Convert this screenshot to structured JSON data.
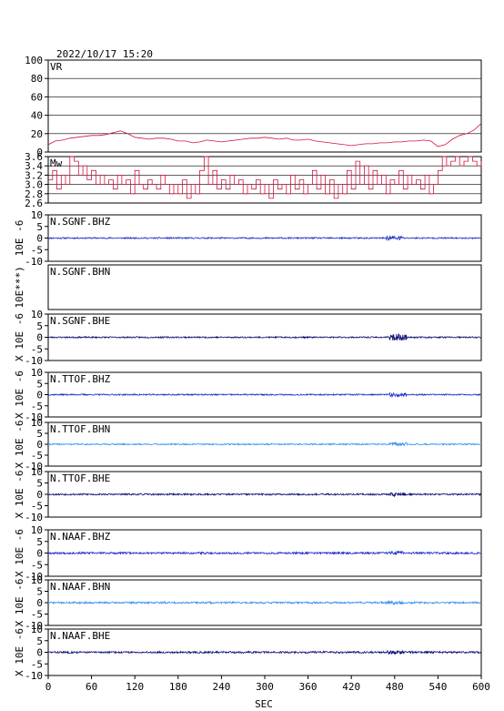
{
  "header": {
    "timestamp": "2022/10/17  15:20"
  },
  "chart_data": {
    "type": "line",
    "xlabel": "SEC",
    "xlim": [
      0,
      600
    ],
    "x_ticks": [
      0,
      60,
      120,
      180,
      240,
      300,
      360,
      420,
      480,
      540,
      600
    ],
    "panels": [
      {
        "label": "VR",
        "ylim": [
          0,
          100
        ],
        "y_ticks": [
          0,
          20,
          40,
          60,
          80,
          100
        ],
        "ylabel": "",
        "grid": true,
        "color": "#d4143c",
        "series": {
          "x": [
            0,
            10,
            20,
            30,
            40,
            50,
            60,
            70,
            80,
            90,
            100,
            110,
            120,
            130,
            140,
            150,
            160,
            170,
            180,
            190,
            200,
            210,
            220,
            230,
            240,
            250,
            260,
            270,
            280,
            290,
            300,
            310,
            320,
            330,
            340,
            350,
            360,
            370,
            380,
            390,
            400,
            410,
            420,
            430,
            440,
            450,
            460,
            470,
            480,
            490,
            500,
            510,
            520,
            530,
            540,
            550,
            560,
            570,
            580,
            590,
            600
          ],
          "y": [
            8,
            12,
            13,
            15,
            16,
            17,
            18,
            18,
            19,
            21,
            23,
            20,
            16,
            15,
            14,
            15,
            15,
            14,
            12,
            12,
            10,
            11,
            13,
            12,
            11,
            12,
            13,
            14,
            15,
            15,
            16,
            15,
            14,
            15,
            13,
            13,
            14,
            12,
            11,
            10,
            9,
            8,
            7,
            8,
            9,
            9,
            10,
            10,
            11,
            11,
            12,
            12,
            13,
            12,
            6,
            8,
            14,
            18,
            20,
            24,
            31
          ]
        }
      },
      {
        "label": "Mw",
        "ylim": [
          2.6,
          3.6
        ],
        "y_ticks": [
          2.6,
          2.8,
          3.0,
          3.2,
          3.4,
          3.6
        ],
        "ylabel": "",
        "grid": true,
        "color": "#d4143c",
        "series": {
          "x": [
            0,
            6,
            12,
            18,
            24,
            30,
            36,
            42,
            48,
            54,
            60,
            66,
            72,
            78,
            84,
            90,
            96,
            102,
            108,
            114,
            120,
            126,
            132,
            138,
            144,
            150,
            156,
            162,
            168,
            174,
            180,
            186,
            192,
            198,
            204,
            210,
            216,
            222,
            228,
            234,
            240,
            246,
            252,
            258,
            264,
            270,
            276,
            282,
            288,
            294,
            300,
            306,
            312,
            318,
            324,
            330,
            336,
            342,
            348,
            354,
            360,
            366,
            372,
            378,
            384,
            390,
            396,
            402,
            408,
            414,
            420,
            426,
            432,
            438,
            444,
            450,
            456,
            462,
            468,
            474,
            480,
            486,
            492,
            498,
            504,
            510,
            516,
            522,
            528,
            534,
            540,
            546,
            552,
            558,
            564,
            570,
            576,
            582,
            588,
            594,
            600
          ],
          "y": [
            3.1,
            3.3,
            2.9,
            3.2,
            3.0,
            3.6,
            3.5,
            3.2,
            3.4,
            3.1,
            3.3,
            3.0,
            3.2,
            3.0,
            3.1,
            2.9,
            3.2,
            3.0,
            3.1,
            2.8,
            3.3,
            3.0,
            2.9,
            3.1,
            3.0,
            2.9,
            3.2,
            3.0,
            2.8,
            3.0,
            2.8,
            3.1,
            2.7,
            3.0,
            2.8,
            3.3,
            3.6,
            3.0,
            3.3,
            2.9,
            3.1,
            2.9,
            3.2,
            3.0,
            3.1,
            2.8,
            3.0,
            2.9,
            3.1,
            2.8,
            3.0,
            2.7,
            3.1,
            2.9,
            3.0,
            2.8,
            3.2,
            2.9,
            3.1,
            2.8,
            3.0,
            3.3,
            2.9,
            3.2,
            2.8,
            3.1,
            2.7,
            3.0,
            2.8,
            3.3,
            2.9,
            3.5,
            3.0,
            3.4,
            2.9,
            3.3,
            3.0,
            3.2,
            2.8,
            3.1,
            3.0,
            3.3,
            2.9,
            3.2,
            3.0,
            3.1,
            2.9,
            3.2,
            2.8,
            3.0,
            3.3,
            3.6,
            3.4,
            3.5,
            3.6,
            3.4,
            3.5,
            3.6,
            3.5,
            3.4,
            3.5
          ]
        }
      },
      {
        "label": "N.SGNF.BHZ",
        "ylim": [
          -10,
          10
        ],
        "y_ticks": [
          -10,
          -5,
          0,
          5,
          10
        ],
        "ylabel": "10E  -6",
        "color": "#1a2cc8",
        "noise_amplitude": 0.3,
        "burst_at": 480,
        "burst_amplitude": 0.7,
        "seed": 11
      },
      {
        "label": "N.SGNF.BHN",
        "ylim": null,
        "y_ticks": [],
        "ylabel": "10E***)",
        "color": null,
        "empty": true
      },
      {
        "label": "N.SGNF.BHE",
        "ylim": [
          -10,
          10
        ],
        "y_ticks": [
          -10,
          -5,
          0,
          5,
          10
        ],
        "ylabel": "X 10E  -6",
        "color": "#0c0c70",
        "noise_amplitude": 0.3,
        "burst_at": 485,
        "burst_amplitude": 1.1,
        "seed": 23
      },
      {
        "label": "N.TTOF.BHZ",
        "ylim": [
          -10,
          10
        ],
        "y_ticks": [
          -10,
          -5,
          0,
          5,
          10
        ],
        "ylabel": "X 10E  -6",
        "color": "#1a2cc8",
        "noise_amplitude": 0.3,
        "burst_at": 485,
        "burst_amplitude": 0.6,
        "seed": 37
      },
      {
        "label": "N.TTOF.BHN",
        "ylim": [
          -10,
          10
        ],
        "y_ticks": [
          -10,
          -5,
          0,
          5,
          10
        ],
        "ylabel": "X 10E  -6",
        "color": "#3090e8",
        "noise_amplitude": 0.3,
        "burst_at": 485,
        "burst_amplitude": 0.6,
        "seed": 41
      },
      {
        "label": "N.TTOF.BHE",
        "ylim": [
          -10,
          10
        ],
        "y_ticks": [
          -10,
          -5,
          0,
          5,
          10
        ],
        "ylabel": "X 10E  -6",
        "color": "#0c0c70",
        "noise_amplitude": 0.35,
        "burst_at": 485,
        "burst_amplitude": 0.6,
        "seed": 53
      },
      {
        "label": "N.NAAF.BHZ",
        "ylim": [
          -10,
          10
        ],
        "y_ticks": [
          -10,
          -5,
          0,
          5,
          10
        ],
        "ylabel": "X 10E  -6",
        "color": "#1a2cc8",
        "noise_amplitude": 0.4,
        "burst_at": 480,
        "burst_amplitude": 0.4,
        "seed": 67
      },
      {
        "label": "N.NAAF.BHN",
        "ylim": [
          -10,
          10
        ],
        "y_ticks": [
          -10,
          -5,
          0,
          5,
          10
        ],
        "ylabel": "X 10E  -6",
        "color": "#3090e8",
        "noise_amplitude": 0.4,
        "burst_at": 480,
        "burst_amplitude": 0.4,
        "seed": 71
      },
      {
        "label": "N.NAAF.BHE",
        "ylim": [
          -10,
          10
        ],
        "y_ticks": [
          -10,
          -5,
          0,
          5,
          10
        ],
        "ylabel": "X 10E  -6",
        "color": "#0c0c70",
        "noise_amplitude": 0.4,
        "burst_at": 480,
        "burst_amplitude": 0.4,
        "seed": 83
      }
    ]
  }
}
